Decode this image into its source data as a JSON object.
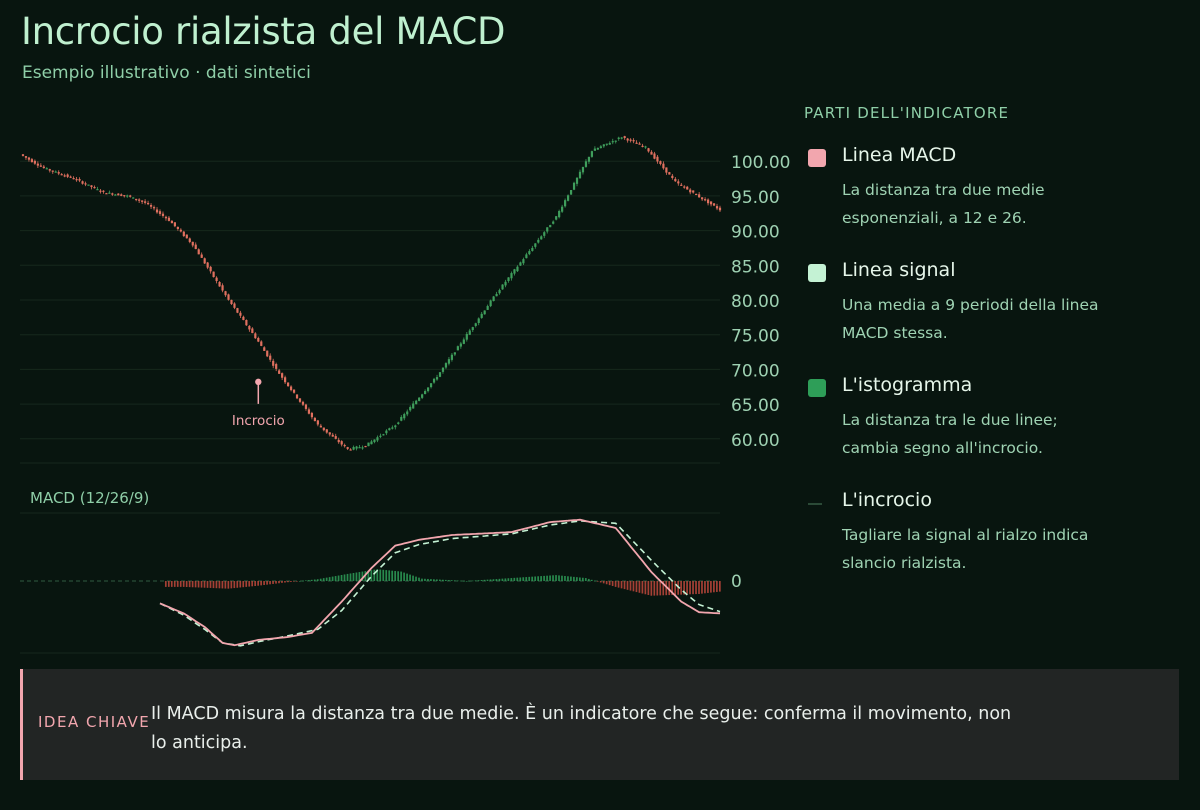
{
  "header": {
    "title": "Incrocio rialzista del MACD",
    "subtitle": "Esempio illustrativo · dati sintetici"
  },
  "legend": {
    "heading": "PARTI DELL'INDICATORE",
    "items": [
      {
        "name": "Linea MACD",
        "description": "La distanza tra due medie esponenziali, a 12 e 26.",
        "color": "#f2a6ae",
        "kind": "square"
      },
      {
        "name": "Linea signal",
        "description": "Una media a 9 periodi della linea MACD stessa.",
        "color": "#c4f2d4",
        "kind": "square"
      },
      {
        "name": "L'istogramma",
        "description": "La distanza tra le due linee; cambia segno all'incrocio.",
        "color": "#2e9e58",
        "kind": "square"
      },
      {
        "name": "L'incrocio",
        "description": "Tagliare la signal al rialzo indica slancio rialzista.",
        "color": "#2b4a37",
        "kind": "line"
      }
    ]
  },
  "callout": {
    "label": "IDEA CHIAVE",
    "text": "Il MACD misura la distanza tra due medie. È un indicatore che segue: conferma il movimento, non lo anticipa."
  },
  "chart_data": [
    {
      "type": "candlestick",
      "x_count": 200,
      "price_path": [
        [
          0,
          101
        ],
        [
          8,
          99
        ],
        [
          18,
          97.5
        ],
        [
          28,
          95.5
        ],
        [
          36,
          95
        ],
        [
          42,
          94
        ],
        [
          50,
          91.5
        ],
        [
          58,
          88
        ],
        [
          70,
          80
        ],
        [
          80,
          74
        ],
        [
          86,
          70
        ],
        [
          92,
          66.5
        ],
        [
          100,
          62
        ],
        [
          110,
          58.5
        ],
        [
          116,
          59
        ],
        [
          126,
          62
        ],
        [
          140,
          69
        ],
        [
          160,
          81
        ],
        [
          180,
          92
        ],
        [
          192,
          101.5
        ],
        [
          202,
          103.5
        ],
        [
          210,
          102
        ],
        [
          220,
          97
        ],
        [
          235,
          93
        ]
      ],
      "yticks": [
        "100.00",
        "95.00",
        "90.00",
        "85.00",
        "80.00",
        "75.00",
        "70.00",
        "65.00",
        "60.00"
      ],
      "ylim": [
        55.5,
        104.5
      ],
      "up_color": "#3f9e5c",
      "down_color": "#e0705f",
      "annotation": {
        "label": "Incrocio",
        "x": 80,
        "y": 68.2
      },
      "grid": true
    },
    {
      "type": "line",
      "title": "MACD (12/26/9)",
      "x_range": [
        47,
        235
      ],
      "ylim": [
        -1.12,
        1.12
      ],
      "ytick": "0",
      "macd_path": [
        [
          47,
          -0.38
        ],
        [
          55,
          -0.55
        ],
        [
          62,
          -0.78
        ],
        [
          68,
          -1.05
        ],
        [
          72,
          -1.09
        ],
        [
          80,
          -1.0
        ],
        [
          90,
          -0.95
        ],
        [
          98,
          -0.88
        ],
        [
          108,
          -0.35
        ],
        [
          118,
          0.22
        ],
        [
          126,
          0.6
        ],
        [
          134,
          0.7
        ],
        [
          145,
          0.78
        ],
        [
          165,
          0.83
        ],
        [
          178,
          1.0
        ],
        [
          188,
          1.04
        ],
        [
          200,
          0.9
        ],
        [
          212,
          0.15
        ],
        [
          222,
          -0.35
        ],
        [
          228,
          -0.53
        ],
        [
          235,
          -0.55
        ]
      ],
      "signal_path": [
        [
          47,
          -0.38
        ],
        [
          55,
          -0.58
        ],
        [
          62,
          -0.82
        ],
        [
          68,
          -1.05
        ],
        [
          74,
          -1.1
        ],
        [
          80,
          -1.03
        ],
        [
          90,
          -0.93
        ],
        [
          100,
          -0.82
        ],
        [
          108,
          -0.5
        ],
        [
          118,
          0.08
        ],
        [
          126,
          0.48
        ],
        [
          134,
          0.62
        ],
        [
          145,
          0.72
        ],
        [
          165,
          0.8
        ],
        [
          178,
          0.95
        ],
        [
          188,
          1.02
        ],
        [
          200,
          0.98
        ],
        [
          212,
          0.35
        ],
        [
          222,
          -0.15
        ],
        [
          228,
          -0.4
        ],
        [
          235,
          -0.52
        ]
      ],
      "histogram": [
        [
          55,
          -0.1
        ],
        [
          70,
          -0.13
        ],
        [
          80,
          -0.08
        ],
        [
          90,
          -0.02
        ],
        [
          100,
          0.03
        ],
        [
          110,
          0.12
        ],
        [
          120,
          0.2
        ],
        [
          128,
          0.16
        ],
        [
          135,
          0.04
        ],
        [
          150,
          0.0
        ],
        [
          180,
          0.1
        ],
        [
          190,
          0.05
        ],
        [
          200,
          -0.1
        ],
        [
          212,
          -0.25
        ],
        [
          228,
          -0.22
        ],
        [
          235,
          -0.18
        ]
      ],
      "macd_color": "#f2a6ae",
      "signal_color": "#c4f2d4",
      "hist_up_color": "#2e9e58",
      "hist_down_color": "#c0483c"
    }
  ]
}
